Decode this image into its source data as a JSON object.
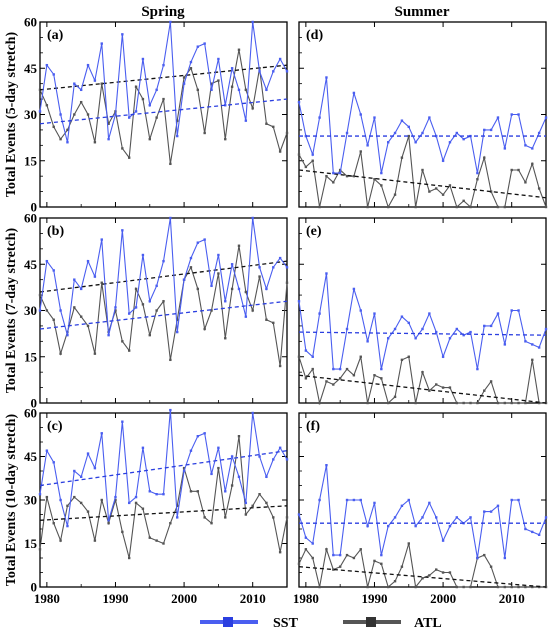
{
  "colors": {
    "sst": "#4a5ef0",
    "atl": "#555555",
    "sst_trend": "#2b3fe0",
    "atl_trend": "#111111"
  },
  "chart_data": {
    "type": "line",
    "column_titles": [
      "Spring",
      "Summer"
    ],
    "row_ylabels": [
      "Total Events (5-day stretch)",
      "Total Events (7-day stretch)",
      "Total Events (10-day stretch)"
    ],
    "xticks": [
      "1980",
      "1990",
      "2000",
      "2010"
    ],
    "yticks": [
      "0",
      "15",
      "30",
      "45",
      "60"
    ],
    "xlim": [
      1979,
      2015
    ],
    "ylim": [
      0,
      60
    ],
    "legend": {
      "position": "bottom-center",
      "entries": [
        "SST",
        "ATL"
      ]
    },
    "panels": [
      {
        "label": "(a)",
        "series": [
          {
            "name": "SST",
            "x_start": 1979,
            "values": [
              31,
              46,
              43,
              30,
              21,
              40,
              38,
              46,
              41,
              53,
              22,
              30,
              56,
              29,
              31,
              48,
              33,
              38,
              46,
              60,
              23,
              40,
              47,
              52,
              53,
              38,
              48,
              33,
              45,
              38,
              28,
              60,
              44,
              38,
              44,
              48,
              44
            ],
            "trend": [
              27,
              35
            ]
          },
          {
            "name": "ATL",
            "x_start": 1979,
            "values": [
              38,
              33,
              26,
              22,
              25,
              30,
              34,
              30,
              21,
              40,
              27,
              31,
              19,
              16,
              39,
              35,
              22,
              29,
              35,
              14,
              28,
              42,
              45,
              38,
              24,
              40,
              41,
              22,
              39,
              51,
              38,
              32,
              45,
              27,
              26,
              18,
              24
            ],
            "trend": [
              38,
              46
            ]
          }
        ]
      },
      {
        "label": "(d)",
        "series": [
          {
            "name": "SST",
            "x_start": 1979,
            "values": [
              34,
              23,
              17,
              29,
              42,
              11,
              11,
              24,
              37,
              30,
              20,
              29,
              11,
              21,
              24,
              28,
              26,
              21,
              24,
              29,
              23,
              15,
              21,
              24,
              22,
              23,
              11,
              25,
              25,
              29,
              19,
              30,
              30,
              20,
              19,
              24,
              29
            ],
            "trend": [
              23,
              23
            ]
          },
          {
            "name": "ATL",
            "x_start": 1979,
            "values": [
              17,
              13,
              15,
              0,
              10,
              8,
              12,
              10,
              10,
              18,
              0,
              9,
              7,
              0,
              4,
              16,
              23,
              0,
              12,
              5,
              6,
              4,
              7,
              0,
              2,
              0,
              9,
              16,
              5,
              0,
              0,
              12,
              12,
              8,
              14,
              6,
              0
            ],
            "trend": [
              12,
              3
            ]
          }
        ]
      },
      {
        "label": "(b)",
        "series": [
          {
            "name": "SST",
            "x_start": 1979,
            "values": [
              30,
              46,
              43,
              30,
              22,
              40,
              37,
              46,
              41,
              53,
              22,
              31,
              56,
              29,
              31,
              48,
              33,
              38,
              46,
              60,
              23,
              40,
              47,
              52,
              53,
              38,
              48,
              33,
              45,
              37,
              28,
              60,
              44,
              37,
              44,
              47,
              44
            ],
            "trend": [
              24,
              33
            ]
          },
          {
            "name": "ATL",
            "x_start": 1979,
            "values": [
              35,
              30,
              27,
              16,
              23,
              31,
              28,
              25,
              16,
              39,
              23,
              30,
              20,
              17,
              37,
              32,
              22,
              30,
              33,
              14,
              27,
              40,
              44,
              37,
              24,
              30,
              42,
              21,
              37,
              51,
              36,
              30,
              41,
              27,
              26,
              12,
              39
            ],
            "trend": [
              36,
              46
            ]
          }
        ]
      },
      {
        "label": "(e)",
        "series": [
          {
            "name": "SST",
            "x_start": 1979,
            "values": [
              33,
              17,
              15,
              29,
              42,
              11,
              11,
              24,
              37,
              30,
              20,
              29,
              11,
              21,
              24,
              28,
              26,
              21,
              24,
              29,
              23,
              15,
              21,
              24,
              22,
              23,
              11,
              25,
              25,
              29,
              19,
              30,
              30,
              20,
              19,
              18,
              24
            ],
            "trend": [
              23,
              22
            ]
          },
          {
            "name": "ATL",
            "x_start": 1979,
            "values": [
              15,
              8,
              11,
              0,
              7,
              6,
              8,
              11,
              9,
              15,
              0,
              9,
              8,
              0,
              2,
              14,
              15,
              0,
              10,
              4,
              6,
              5,
              5,
              0,
              0,
              0,
              0,
              4,
              7,
              0,
              0,
              0,
              0,
              0,
              14,
              0,
              0
            ],
            "trend": [
              9,
              0
            ]
          }
        ]
      },
      {
        "label": "(c)",
        "series": [
          {
            "name": "SST",
            "x_start": 1979,
            "values": [
              32,
              47,
              43,
              30,
              21,
              40,
              38,
              46,
              41,
              53,
              23,
              31,
              57,
              29,
              31,
              48,
              33,
              32,
              32,
              61,
              24,
              40,
              47,
              52,
              53,
              39,
              48,
              33,
              45,
              38,
              29,
              60,
              45,
              38,
              44,
              48,
              44
            ],
            "trend": [
              35,
              47
            ]
          },
          {
            "name": "ATL",
            "x_start": 1979,
            "values": [
              13,
              31,
              22,
              16,
              28,
              31,
              29,
              26,
              16,
              30,
              22,
              30,
              19,
              10,
              29,
              27,
              17,
              16,
              15,
              22,
              28,
              41,
              33,
              33,
              24,
              22,
              41,
              24,
              35,
              52,
              25,
              28,
              32,
              29,
              24,
              12,
              24
            ],
            "trend": [
              23,
              28
            ]
          }
        ]
      },
      {
        "label": "(f)",
        "series": [
          {
            "name": "SST",
            "x_start": 1979,
            "values": [
              25,
              17,
              15,
              30,
              42,
              11,
              11,
              30,
              30,
              30,
              21,
              29,
              11,
              21,
              24,
              28,
              30,
              21,
              24,
              29,
              24,
              16,
              21,
              24,
              22,
              24,
              10,
              26,
              26,
              28,
              10,
              30,
              30,
              20,
              19,
              18,
              24
            ],
            "trend": [
              22,
              22
            ]
          },
          {
            "name": "ATL",
            "x_start": 1979,
            "values": [
              8,
              13,
              10,
              0,
              13,
              6,
              7,
              11,
              10,
              13,
              0,
              9,
              8,
              0,
              2,
              7,
              15,
              0,
              3,
              4,
              6,
              5,
              5,
              0,
              0,
              0,
              10,
              11,
              7,
              0,
              0,
              0,
              0,
              0,
              0,
              0,
              0
            ],
            "trend": [
              7,
              0
            ]
          }
        ]
      }
    ]
  }
}
